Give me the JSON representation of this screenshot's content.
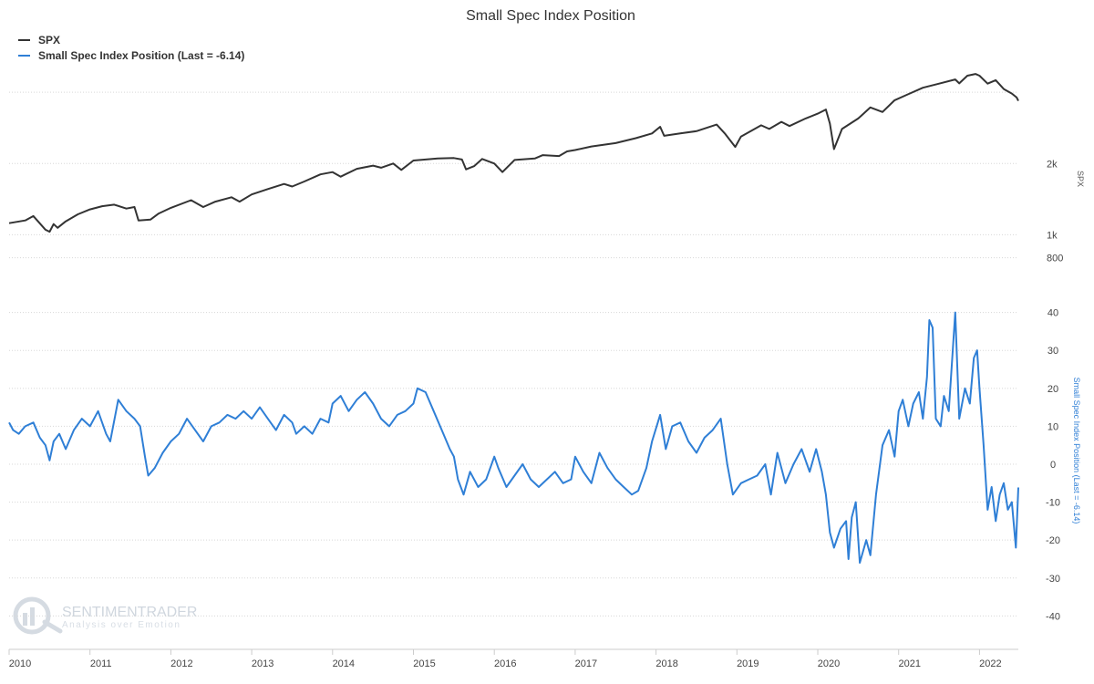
{
  "chart_data": {
    "type": "line",
    "title": "Small Spec Index Position",
    "legend": {
      "placement": "top-left",
      "entries": [
        {
          "name": "SPX",
          "color": "#333333"
        },
        {
          "name": "Small Spec Index Position (Last = -6.14)",
          "color": "#2f7fd6"
        }
      ]
    },
    "x_axis": {
      "range": [
        2010.0,
        2022.48
      ],
      "tick_labels": [
        "2010",
        "2011",
        "2012",
        "2013",
        "2014",
        "2015",
        "2016",
        "2017",
        "2018",
        "2019",
        "2020",
        "2021",
        "2022"
      ]
    },
    "panels": [
      {
        "name": "SPX",
        "axis_label": "SPX",
        "scale": "log",
        "y_range": [
          650,
          5000
        ],
        "tick_labels": [
          "2k",
          "1k",
          "800"
        ],
        "series": {
          "name": "SPX",
          "color": "#333333",
          "points": [
            [
              2010.0,
              1120
            ],
            [
              2010.2,
              1150
            ],
            [
              2010.3,
              1200
            ],
            [
              2010.45,
              1050
            ],
            [
              2010.5,
              1030
            ],
            [
              2010.55,
              1110
            ],
            [
              2010.6,
              1070
            ],
            [
              2010.7,
              1140
            ],
            [
              2010.85,
              1220
            ],
            [
              2011.0,
              1280
            ],
            [
              2011.15,
              1320
            ],
            [
              2011.3,
              1340
            ],
            [
              2011.45,
              1290
            ],
            [
              2011.55,
              1310
            ],
            [
              2011.6,
              1150
            ],
            [
              2011.75,
              1160
            ],
            [
              2011.85,
              1230
            ],
            [
              2012.0,
              1300
            ],
            [
              2012.25,
              1400
            ],
            [
              2012.4,
              1310
            ],
            [
              2012.55,
              1380
            ],
            [
              2012.75,
              1440
            ],
            [
              2012.85,
              1380
            ],
            [
              2013.0,
              1480
            ],
            [
              2013.2,
              1560
            ],
            [
              2013.4,
              1640
            ],
            [
              2013.5,
              1600
            ],
            [
              2013.65,
              1680
            ],
            [
              2013.85,
              1800
            ],
            [
              2014.0,
              1840
            ],
            [
              2014.1,
              1760
            ],
            [
              2014.3,
              1900
            ],
            [
              2014.5,
              1960
            ],
            [
              2014.6,
              1920
            ],
            [
              2014.75,
              2000
            ],
            [
              2014.85,
              1880
            ],
            [
              2015.0,
              2060
            ],
            [
              2015.3,
              2100
            ],
            [
              2015.5,
              2110
            ],
            [
              2015.6,
              2080
            ],
            [
              2015.65,
              1890
            ],
            [
              2015.75,
              1950
            ],
            [
              2015.85,
              2090
            ],
            [
              2016.0,
              2000
            ],
            [
              2016.1,
              1840
            ],
            [
              2016.25,
              2070
            ],
            [
              2016.5,
              2100
            ],
            [
              2016.6,
              2170
            ],
            [
              2016.8,
              2150
            ],
            [
              2016.9,
              2250
            ],
            [
              2017.0,
              2280
            ],
            [
              2017.2,
              2360
            ],
            [
              2017.5,
              2440
            ],
            [
              2017.75,
              2560
            ],
            [
              2017.95,
              2680
            ],
            [
              2018.05,
              2860
            ],
            [
              2018.1,
              2620
            ],
            [
              2018.3,
              2680
            ],
            [
              2018.5,
              2740
            ],
            [
              2018.75,
              2920
            ],
            [
              2018.85,
              2680
            ],
            [
              2018.98,
              2350
            ],
            [
              2019.05,
              2600
            ],
            [
              2019.3,
              2900
            ],
            [
              2019.4,
              2800
            ],
            [
              2019.55,
              3000
            ],
            [
              2019.65,
              2880
            ],
            [
              2019.85,
              3100
            ],
            [
              2020.0,
              3250
            ],
            [
              2020.1,
              3380
            ],
            [
              2020.15,
              2950
            ],
            [
              2020.2,
              2300
            ],
            [
              2020.3,
              2800
            ],
            [
              2020.5,
              3100
            ],
            [
              2020.65,
              3450
            ],
            [
              2020.8,
              3300
            ],
            [
              2020.95,
              3700
            ],
            [
              2021.1,
              3900
            ],
            [
              2021.3,
              4180
            ],
            [
              2021.5,
              4350
            ],
            [
              2021.7,
              4530
            ],
            [
              2021.75,
              4360
            ],
            [
              2021.85,
              4700
            ],
            [
              2021.95,
              4780
            ],
            [
              2022.0,
              4700
            ],
            [
              2022.1,
              4350
            ],
            [
              2022.2,
              4500
            ],
            [
              2022.3,
              4130
            ],
            [
              2022.4,
              3950
            ],
            [
              2022.46,
              3800
            ],
            [
              2022.48,
              3680
            ]
          ]
        }
      },
      {
        "name": "Small Spec Index Position",
        "axis_label": "Small Spec Index Position (Last = -6.14)",
        "scale": "linear",
        "y_range": [
          -44,
          44
        ],
        "tick_labels": [
          "40",
          "30",
          "20",
          "10",
          "0",
          "-10",
          "-20",
          "-30",
          "-40"
        ],
        "series": {
          "name": "Small Spec Index Position (Last = -6.14)",
          "color": "#2f7fd6",
          "points": [
            [
              2010.0,
              11
            ],
            [
              2010.05,
              9
            ],
            [
              2010.12,
              8
            ],
            [
              2010.2,
              10
            ],
            [
              2010.3,
              11
            ],
            [
              2010.38,
              7
            ],
            [
              2010.45,
              5
            ],
            [
              2010.5,
              1
            ],
            [
              2010.55,
              6
            ],
            [
              2010.62,
              8
            ],
            [
              2010.7,
              4
            ],
            [
              2010.8,
              9
            ],
            [
              2010.9,
              12
            ],
            [
              2011.0,
              10
            ],
            [
              2011.1,
              14
            ],
            [
              2011.2,
              8
            ],
            [
              2011.25,
              6
            ],
            [
              2011.35,
              17
            ],
            [
              2011.45,
              14
            ],
            [
              2011.55,
              12
            ],
            [
              2011.62,
              10
            ],
            [
              2011.68,
              2
            ],
            [
              2011.72,
              -3
            ],
            [
              2011.8,
              -1
            ],
            [
              2011.9,
              3
            ],
            [
              2012.0,
              6
            ],
            [
              2012.1,
              8
            ],
            [
              2012.2,
              12
            ],
            [
              2012.3,
              9
            ],
            [
              2012.4,
              6
            ],
            [
              2012.5,
              10
            ],
            [
              2012.6,
              11
            ],
            [
              2012.7,
              13
            ],
            [
              2012.8,
              12
            ],
            [
              2012.9,
              14
            ],
            [
              2013.0,
              12
            ],
            [
              2013.1,
              15
            ],
            [
              2013.2,
              12
            ],
            [
              2013.3,
              9
            ],
            [
              2013.4,
              13
            ],
            [
              2013.5,
              11
            ],
            [
              2013.55,
              8
            ],
            [
              2013.65,
              10
            ],
            [
              2013.75,
              8
            ],
            [
              2013.85,
              12
            ],
            [
              2013.95,
              11
            ],
            [
              2014.0,
              16
            ],
            [
              2014.1,
              18
            ],
            [
              2014.2,
              14
            ],
            [
              2014.3,
              17
            ],
            [
              2014.4,
              19
            ],
            [
              2014.5,
              16
            ],
            [
              2014.6,
              12
            ],
            [
              2014.7,
              10
            ],
            [
              2014.8,
              13
            ],
            [
              2014.9,
              14
            ],
            [
              2015.0,
              16
            ],
            [
              2015.05,
              20
            ],
            [
              2015.15,
              19
            ],
            [
              2015.25,
              14
            ],
            [
              2015.35,
              9
            ],
            [
              2015.45,
              4
            ],
            [
              2015.5,
              2
            ],
            [
              2015.55,
              -4
            ],
            [
              2015.62,
              -8
            ],
            [
              2015.7,
              -2
            ],
            [
              2015.8,
              -6
            ],
            [
              2015.9,
              -4
            ],
            [
              2016.0,
              2
            ],
            [
              2016.05,
              -1
            ],
            [
              2016.15,
              -6
            ],
            [
              2016.25,
              -3
            ],
            [
              2016.35,
              0
            ],
            [
              2016.45,
              -4
            ],
            [
              2016.55,
              -6
            ],
            [
              2016.65,
              -4
            ],
            [
              2016.75,
              -2
            ],
            [
              2016.85,
              -5
            ],
            [
              2016.95,
              -4
            ],
            [
              2017.0,
              2
            ],
            [
              2017.1,
              -2
            ],
            [
              2017.2,
              -5
            ],
            [
              2017.3,
              3
            ],
            [
              2017.4,
              -1
            ],
            [
              2017.5,
              -4
            ],
            [
              2017.6,
              -6
            ],
            [
              2017.7,
              -8
            ],
            [
              2017.78,
              -7
            ],
            [
              2017.88,
              -1
            ],
            [
              2017.95,
              6
            ],
            [
              2018.05,
              13
            ],
            [
              2018.12,
              4
            ],
            [
              2018.2,
              10
            ],
            [
              2018.3,
              11
            ],
            [
              2018.4,
              6
            ],
            [
              2018.5,
              3
            ],
            [
              2018.6,
              7
            ],
            [
              2018.7,
              9
            ],
            [
              2018.8,
              12
            ],
            [
              2018.88,
              0
            ],
            [
              2018.95,
              -8
            ],
            [
              2019.05,
              -5
            ],
            [
              2019.15,
              -4
            ],
            [
              2019.25,
              -3
            ],
            [
              2019.35,
              0
            ],
            [
              2019.42,
              -8
            ],
            [
              2019.5,
              3
            ],
            [
              2019.6,
              -5
            ],
            [
              2019.7,
              0
            ],
            [
              2019.8,
              4
            ],
            [
              2019.9,
              -2
            ],
            [
              2019.98,
              4
            ],
            [
              2020.05,
              -2
            ],
            [
              2020.1,
              -8
            ],
            [
              2020.15,
              -18
            ],
            [
              2020.2,
              -22
            ],
            [
              2020.28,
              -17
            ],
            [
              2020.35,
              -15
            ],
            [
              2020.38,
              -25
            ],
            [
              2020.42,
              -14
            ],
            [
              2020.47,
              -10
            ],
            [
              2020.52,
              -26
            ],
            [
              2020.6,
              -20
            ],
            [
              2020.65,
              -24
            ],
            [
              2020.72,
              -8
            ],
            [
              2020.8,
              5
            ],
            [
              2020.88,
              9
            ],
            [
              2020.95,
              2
            ],
            [
              2021.0,
              14
            ],
            [
              2021.05,
              17
            ],
            [
              2021.12,
              10
            ],
            [
              2021.18,
              16
            ],
            [
              2021.25,
              19
            ],
            [
              2021.3,
              12
            ],
            [
              2021.35,
              23
            ],
            [
              2021.38,
              38
            ],
            [
              2021.42,
              36
            ],
            [
              2021.46,
              12
            ],
            [
              2021.52,
              10
            ],
            [
              2021.56,
              18
            ],
            [
              2021.62,
              14
            ],
            [
              2021.7,
              40
            ],
            [
              2021.75,
              12
            ],
            [
              2021.82,
              20
            ],
            [
              2021.88,
              16
            ],
            [
              2021.93,
              28
            ],
            [
              2021.97,
              30
            ],
            [
              2022.0,
              20
            ],
            [
              2022.05,
              5
            ],
            [
              2022.1,
              -12
            ],
            [
              2022.15,
              -6
            ],
            [
              2022.2,
              -15
            ],
            [
              2022.25,
              -8
            ],
            [
              2022.3,
              -5
            ],
            [
              2022.35,
              -12
            ],
            [
              2022.4,
              -10
            ],
            [
              2022.45,
              -22
            ],
            [
              2022.48,
              -6.14
            ]
          ]
        }
      }
    ]
  },
  "watermark": {
    "brand": "SENTIMENTRADER",
    "tagline": "Analysis over Emotion"
  }
}
